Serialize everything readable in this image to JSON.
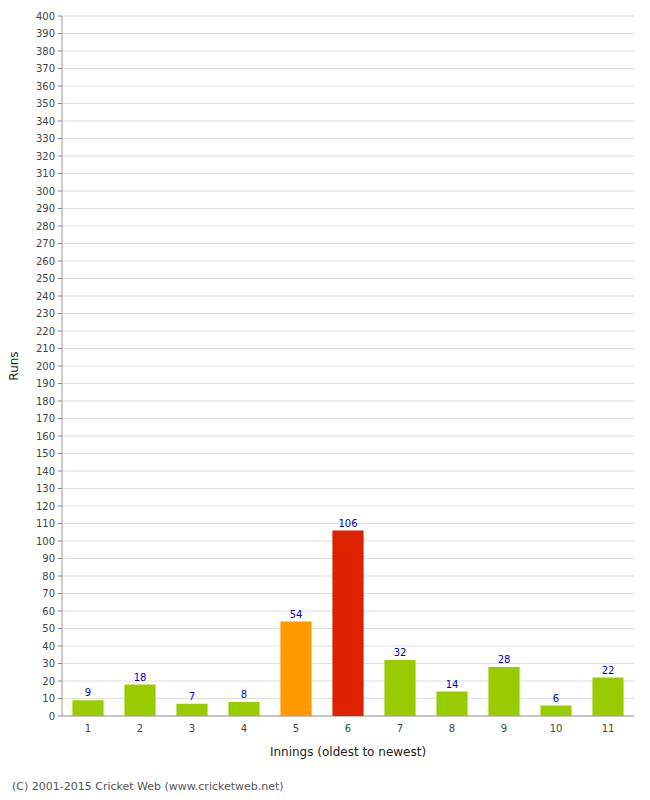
{
  "chart_data": {
    "type": "bar",
    "xlabel": "Innings (oldest to newest)",
    "ylabel": "Runs",
    "categories": [
      "1",
      "2",
      "3",
      "4",
      "5",
      "6",
      "7",
      "8",
      "9",
      "10",
      "11"
    ],
    "values": [
      9,
      18,
      7,
      8,
      54,
      106,
      32,
      14,
      28,
      6,
      22
    ],
    "colors": [
      "#99cc00",
      "#99cc00",
      "#99cc00",
      "#99cc00",
      "#ff9900",
      "#dd2200",
      "#99cc00",
      "#99cc00",
      "#99cc00",
      "#99cc00",
      "#99cc00"
    ],
    "ylim": [
      0,
      400
    ],
    "yticks": [
      0,
      10,
      20,
      30,
      40,
      50,
      60,
      70,
      80,
      90,
      100,
      110,
      120,
      130,
      140,
      150,
      160,
      170,
      180,
      190,
      200,
      210,
      220,
      230,
      240,
      250,
      260,
      270,
      280,
      290,
      300,
      310,
      320,
      330,
      340,
      350,
      360,
      370,
      380,
      390,
      400
    ],
    "grid": true,
    "data_labels": true,
    "footer": "(C) 2001-2015 Cricket Web (www.cricketweb.net)"
  }
}
